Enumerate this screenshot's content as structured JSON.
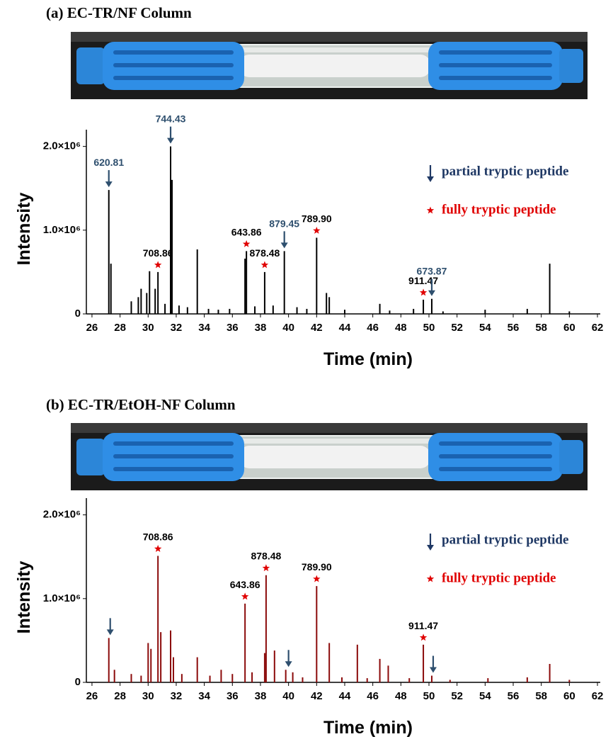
{
  "chart_data": [
    {
      "type": "spike",
      "title": "(a) EC-TR/NF Column",
      "xlabel": "Time (min)",
      "ylabel": "Intensity",
      "color": "#000000",
      "xlim": [
        25.6,
        62.2
      ],
      "ylim": [
        0,
        2200000
      ],
      "xticks": [
        26,
        28,
        30,
        32,
        34,
        36,
        38,
        40,
        42,
        44,
        46,
        48,
        50,
        52,
        54,
        56,
        58,
        60,
        62
      ],
      "yticks": [
        0,
        {
          "value": 1000000,
          "label": "1.0×10⁶"
        },
        {
          "value": 2000000,
          "label": "2.0×10⁶"
        }
      ],
      "x": [
        27.2,
        27.35,
        28.8,
        29.3,
        29.5,
        29.9,
        30.1,
        30.5,
        30.7,
        31.2,
        31.6,
        31.7,
        32.2,
        32.8,
        33.5,
        34.3,
        35.0,
        35.8,
        36.9,
        37.0,
        37.6,
        38.3,
        38.9,
        39.7,
        40.6,
        41.3,
        42.0,
        42.7,
        42.9,
        44.0,
        46.5,
        47.2,
        48.9,
        49.6,
        50.2,
        51.0,
        54.0,
        57.0,
        58.6,
        60.0
      ],
      "values": [
        1480000,
        600000,
        150000,
        200000,
        300000,
        250000,
        510000,
        300000,
        500000,
        120000,
        2000000,
        1600000,
        100000,
        80000,
        770000,
        60000,
        50000,
        60000,
        660000,
        750000,
        90000,
        500000,
        100000,
        750000,
        80000,
        60000,
        910000,
        250000,
        200000,
        50000,
        120000,
        40000,
        60000,
        170000,
        180000,
        30000,
        50000,
        60000,
        600000,
        30000
      ],
      "annotations": [
        {
          "text": "620.81",
          "x": 27.2,
          "marker": "arrow",
          "color": "#2e4f6e"
        },
        {
          "text": "744.43",
          "x": 31.6,
          "marker": "arrow",
          "color": "#2e4f6e"
        },
        {
          "text": "708.86",
          "x": 30.7,
          "marker": "star",
          "color": "#000000"
        },
        {
          "text": "643.86",
          "x": 37.0,
          "marker": "star",
          "color": "#000000"
        },
        {
          "text": "878.48",
          "x": 38.3,
          "marker": "star",
          "color": "#000000"
        },
        {
          "text": "879.45",
          "x": 39.7,
          "marker": "arrow",
          "color": "#2e4f6e"
        },
        {
          "text": "789.90",
          "x": 42.0,
          "marker": "star",
          "color": "#000000"
        },
        {
          "text": "911.47",
          "x": 49.6,
          "marker": "star",
          "color": "#000000"
        },
        {
          "text": "673.87",
          "x": 50.2,
          "marker": "arrow",
          "color": "#2e4f6e"
        }
      ],
      "legend": [
        {
          "label": "partial tryptic peptide",
          "marker": "arrow",
          "color": "#1f3864"
        },
        {
          "label": "fully tryptic peptide",
          "marker": "star",
          "color": "#e00000"
        }
      ],
      "legend_position": "upper right"
    },
    {
      "type": "spike",
      "title": "(b) EC-TR/EtOH-NF Column",
      "xlabel": "Time (min)",
      "ylabel": "Intensity",
      "color": "#8b0a0a",
      "xlim": [
        25.6,
        62.2
      ],
      "ylim": [
        0,
        2200000
      ],
      "xticks": [
        26,
        28,
        30,
        32,
        34,
        36,
        38,
        40,
        42,
        44,
        46,
        48,
        50,
        52,
        54,
        56,
        58,
        60,
        62
      ],
      "yticks": [
        0,
        {
          "value": 1000000,
          "label": "1.0×10⁶"
        },
        {
          "value": 2000000,
          "label": "2.0×10⁶"
        }
      ],
      "x": [
        27.2,
        27.6,
        28.8,
        29.5,
        30.0,
        30.2,
        30.7,
        30.9,
        31.6,
        31.8,
        32.4,
        33.5,
        34.4,
        35.2,
        36.0,
        36.9,
        37.4,
        38.3,
        38.4,
        39.0,
        39.8,
        40.3,
        41.0,
        42.0,
        42.9,
        43.8,
        44.9,
        45.6,
        46.5,
        47.1,
        48.6,
        49.6,
        50.2,
        51.5,
        54.2,
        57.0,
        58.6,
        60.0
      ],
      "values": [
        530000,
        150000,
        100000,
        80000,
        470000,
        400000,
        1510000,
        600000,
        620000,
        300000,
        100000,
        300000,
        80000,
        150000,
        100000,
        940000,
        120000,
        350000,
        1280000,
        380000,
        150000,
        120000,
        60000,
        1150000,
        470000,
        60000,
        450000,
        50000,
        280000,
        200000,
        50000,
        450000,
        80000,
        30000,
        50000,
        60000,
        220000,
        30000
      ],
      "annotations": [
        {
          "x": 27.3,
          "marker": "arrow",
          "color": "#2e4f6e"
        },
        {
          "text": "708.86",
          "x": 30.7,
          "marker": "star",
          "color": "#000000"
        },
        {
          "text": "643.86",
          "x": 36.9,
          "marker": "star",
          "color": "#000000"
        },
        {
          "text": "878.48",
          "x": 38.4,
          "marker": "star",
          "color": "#000000"
        },
        {
          "x": 40.0,
          "marker": "arrow",
          "color": "#2e4f6e"
        },
        {
          "text": "789.90",
          "x": 42.0,
          "marker": "star",
          "color": "#000000"
        },
        {
          "text": "911.47",
          "x": 49.6,
          "marker": "star",
          "color": "#000000"
        },
        {
          "x": 50.3,
          "marker": "arrow",
          "color": "#2e4f6e"
        }
      ],
      "legend": [
        {
          "label": "partial tryptic peptide",
          "marker": "arrow",
          "color": "#1f3864"
        },
        {
          "label": "fully tryptic peptide",
          "marker": "star",
          "color": "#e00000"
        }
      ],
      "legend_position": "upper right"
    }
  ]
}
